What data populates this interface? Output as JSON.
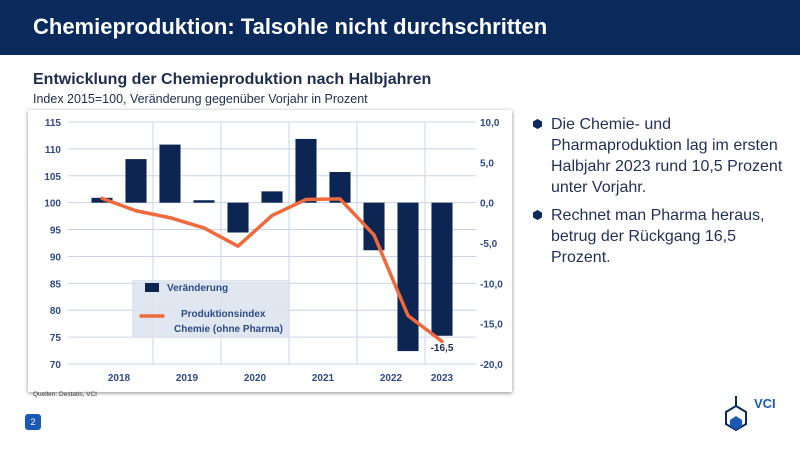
{
  "header": {
    "title": "Chemieproduktion: Talsohle nicht durchschritten"
  },
  "chart_title": "Entwicklung der Chemieproduktion nach Halbjahren",
  "chart_subtitle": "Index 2015=100, Veränderung gegenüber Vorjahr in Prozent",
  "source": "Quellen: Destatis, VCI",
  "bullets": [
    "Die Chemie- und Pharmaproduktion lag im ersten Halbjahr 2023 rund 10,5 Prozent unter Vorjahr.",
    "Rechnet man Pharma heraus, betrug der Rückgang 16,5 Prozent."
  ],
  "page_number": "2",
  "logo": {
    "text": "VCI"
  },
  "colors": {
    "header": "#0a2a5c",
    "bar": "#0d2552",
    "line": "#ee6a3c",
    "grid": "#c8d4e8",
    "accent": "#1a5ab5"
  },
  "chart_data": {
    "type": "bar+line",
    "x_categories": [
      "2018 H1",
      "2018 H2",
      "2019 H1",
      "2019 H2",
      "2020 H1",
      "2020 H2",
      "2021 H1",
      "2021 H2",
      "2022 H1",
      "2022 H2",
      "2023 H1"
    ],
    "year_labels": [
      "2018",
      "2019",
      "2020",
      "2021",
      "2022",
      "2023"
    ],
    "series": [
      {
        "name": "Veränderung",
        "type": "bar",
        "axis": "right",
        "values": [
          0.6,
          5.4,
          7.2,
          0.3,
          -3.7,
          1.4,
          7.9,
          3.8,
          -5.9,
          -18.4,
          -16.5
        ]
      },
      {
        "name": "Produktionsindex Chemie (ohne Pharma)",
        "type": "line",
        "axis": "left",
        "values": [
          100.8,
          98.5,
          97.2,
          95.3,
          91.9,
          97.6,
          100.6,
          100.7,
          94.0,
          79.0,
          74.2
        ]
      }
    ],
    "left_axis": {
      "min": 70,
      "max": 115,
      "ticks": [
        "70",
        "75",
        "80",
        "85",
        "90",
        "95",
        "100",
        "105",
        "110",
        "115"
      ]
    },
    "right_axis": {
      "min": -20,
      "max": 10,
      "ticks": [
        "-20,0",
        "-15,0",
        "-10,0",
        "-5,0",
        "0,0",
        "5,0",
        "10,0"
      ]
    },
    "data_labels": [
      {
        "index": 10,
        "text": "-16,5"
      }
    ],
    "legend": {
      "items": [
        "Veränderung",
        "Produktionsindex",
        "Chemie (ohne Pharma)"
      ],
      "placement": "lower-left-inside"
    },
    "grid": true
  }
}
